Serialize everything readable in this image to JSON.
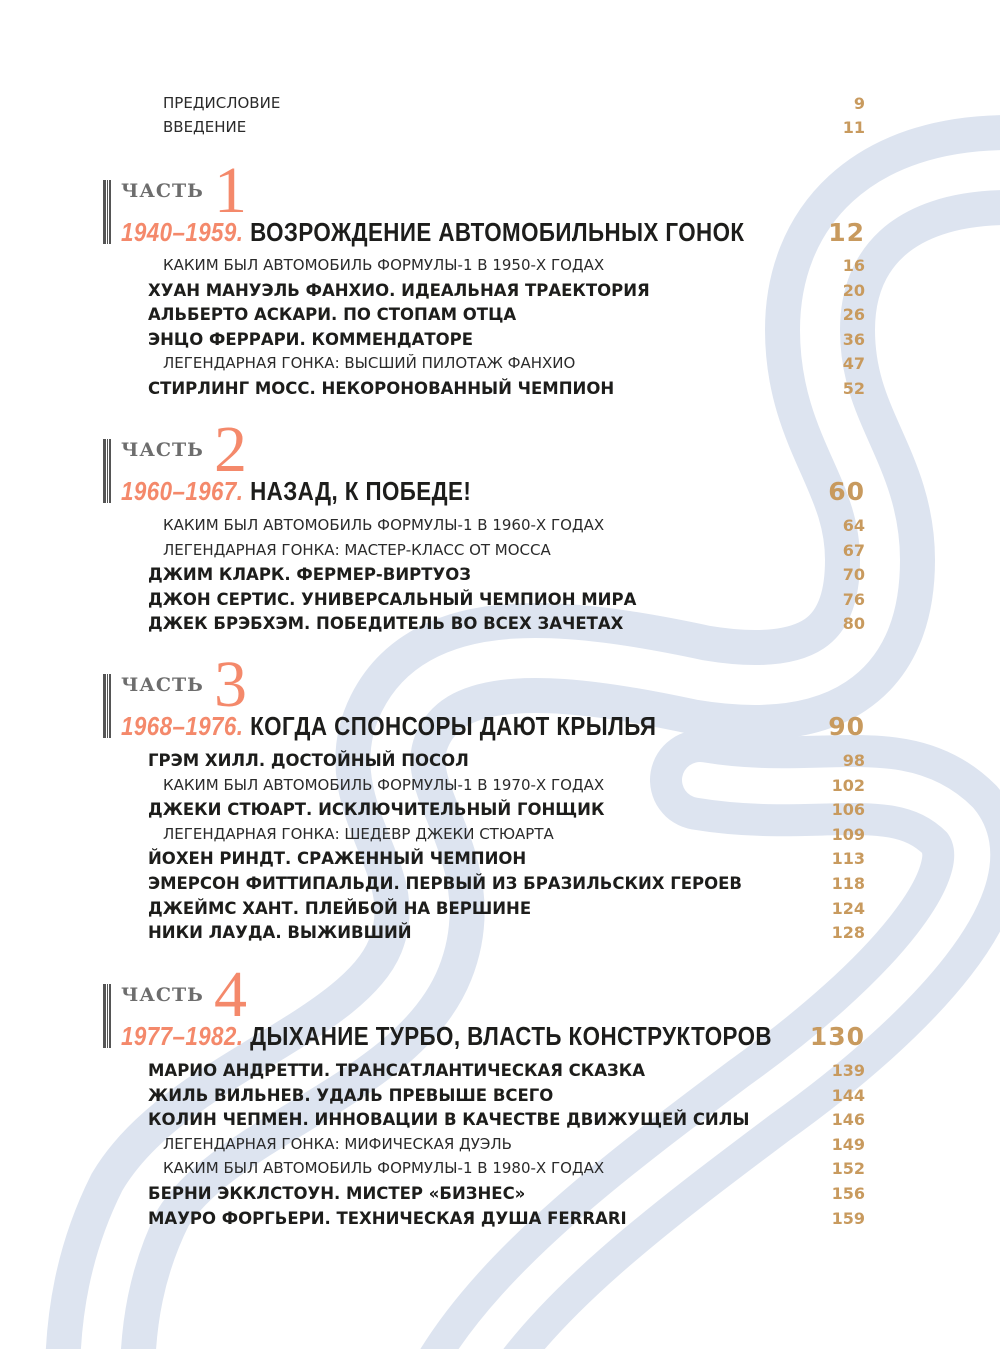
{
  "colors": {
    "accent": "#f4896b",
    "page_numbers": "#c89a5e",
    "background_track": "#dde4f0"
  },
  "front": [
    {
      "title": "ПРЕДИСЛОВИЕ",
      "page": "9"
    },
    {
      "title": "ВВЕДЕНИЕ",
      "page": "11"
    }
  ],
  "parts": [
    {
      "label": "ЧАСТЬ",
      "number": "1",
      "years": "1940–1959.",
      "title": "ВОЗРОЖДЕНИЕ АВТОМОБИЛЬНЫХ ГОНОК",
      "page": "12",
      "entries": [
        {
          "title": "КАКИМ БЫЛ АВТОМОБИЛЬ ФОРМУЛЫ-1 В 1950-Х ГОДАХ",
          "page": "16",
          "style": "light"
        },
        {
          "title": "ХУАН МАНУЭЛЬ ФАНХИО. ИДЕАЛЬНАЯ ТРАЕКТОРИЯ",
          "page": "20",
          "style": "bold"
        },
        {
          "title": "АЛЬБЕРТО АСКАРИ. ПО СТОПАМ ОТЦА",
          "page": "26",
          "style": "bold"
        },
        {
          "title": "ЭНЦО ФЕРРАРИ. КОММЕНДАТОРЕ",
          "page": "36",
          "style": "bold"
        },
        {
          "title": "ЛЕГЕНДАРНАЯ ГОНКА: ВЫСШИЙ ПИЛОТАЖ ФАНХИО",
          "page": "47",
          "style": "light"
        },
        {
          "title": "СТИРЛИНГ МОСС. НЕКОРОНОВАННЫЙ ЧЕМПИОН",
          "page": "52",
          "style": "bold"
        }
      ]
    },
    {
      "label": "ЧАСТЬ",
      "number": "2",
      "years": "1960–1967.",
      "title": "НАЗАД, К ПОБЕДЕ!",
      "page": "60",
      "entries": [
        {
          "title": "КАКИМ БЫЛ АВТОМОБИЛЬ ФОРМУЛЫ-1 В 1960-Х ГОДАХ",
          "page": "64",
          "style": "light"
        },
        {
          "title": "ЛЕГЕНДАРНАЯ ГОНКА: МАСТЕР-КЛАСС ОТ МОССА",
          "page": "67",
          "style": "light"
        },
        {
          "title": "ДЖИМ КЛАРК. ФЕРМЕР-ВИРТУОЗ",
          "page": "70",
          "style": "bold"
        },
        {
          "title": "ДЖОН СЕРТИС. УНИВЕРСАЛЬНЫЙ ЧЕМПИОН МИРА",
          "page": "76",
          "style": "bold"
        },
        {
          "title": "ДЖЕК БРЭБХЭМ. ПОБЕДИТЕЛЬ ВО ВСЕХ ЗАЧЕТАХ",
          "page": "80",
          "style": "bold"
        }
      ]
    },
    {
      "label": "ЧАСТЬ",
      "number": "3",
      "years": "1968–1976.",
      "title": "КОГДА СПОНСОРЫ ДАЮТ КРЫЛЬЯ",
      "page": "90",
      "entries": [
        {
          "title": "ГРЭМ ХИЛЛ. ДОСТОЙНЫЙ ПОСОЛ",
          "page": "98",
          "style": "bold"
        },
        {
          "title": "КАКИМ БЫЛ АВТОМОБИЛЬ ФОРМУЛЫ-1 В 1970-Х ГОДАХ",
          "page": "102",
          "style": "light"
        },
        {
          "title": "ДЖЕКИ СТЮАРТ. ИСКЛЮЧИТЕЛЬНЫЙ ГОНЩИК",
          "page": "106",
          "style": "bold"
        },
        {
          "title": "ЛЕГЕНДАРНАЯ ГОНКА: ШЕДЕВР ДЖЕКИ СТЮАРТА",
          "page": "109",
          "style": "light"
        },
        {
          "title": "ЙОХЕН РИНДТ. СРАЖЕННЫЙ ЧЕМПИОН",
          "page": "113",
          "style": "bold"
        },
        {
          "title": "ЭМЕРСОН ФИТТИПАЛЬДИ. ПЕРВЫЙ ИЗ БРАЗИЛЬСКИХ ГЕРОЕВ",
          "page": "118",
          "style": "bold"
        },
        {
          "title": "ДЖЕЙМС ХАНТ. ПЛЕЙБОЙ НА ВЕРШИНЕ",
          "page": "124",
          "style": "bold"
        },
        {
          "title": "НИКИ ЛАУДА. ВЫЖИВШИЙ",
          "page": "128",
          "style": "bold"
        }
      ]
    },
    {
      "label": "ЧАСТЬ",
      "number": "4",
      "years": "1977–1982.",
      "title": "ДЫХАНИЕ ТУРБО, ВЛАСТЬ КОНСТРУКТОРОВ",
      "page": "130",
      "entries": [
        {
          "title": "МАРИО АНДРЕТТИ. ТРАНСАТЛАНТИЧЕСКАЯ СКАЗКА",
          "page": "139",
          "style": "bold"
        },
        {
          "title": "ЖИЛЬ ВИЛЬНЕВ. УДАЛЬ ПРЕВЫШЕ ВСЕГО",
          "page": "144",
          "style": "bold"
        },
        {
          "title": "КОЛИН ЧЕПМЕН. ИННОВАЦИИ В КАЧЕСТВЕ ДВИЖУЩЕЙ СИЛЫ",
          "page": "146",
          "style": "bold"
        },
        {
          "title": "ЛЕГЕНДАРНАЯ ГОНКА: МИФИЧЕСКАЯ ДУЭЛЬ",
          "page": "149",
          "style": "light"
        },
        {
          "title": "КАКИМ БЫЛ АВТОМОБИЛЬ ФОРМУЛЫ-1 В 1980-Х ГОДАХ",
          "page": "152",
          "style": "light"
        },
        {
          "title": "БЕРНИ ЭККЛСТОУН. МИСТЕР «БИЗНЕС»",
          "page": "156",
          "style": "bold"
        },
        {
          "title": "МАУРО ФОРГЬЕРИ. ТЕХНИЧЕСКАЯ ДУША FERRARI",
          "page": "159",
          "style": "bold"
        }
      ]
    }
  ]
}
